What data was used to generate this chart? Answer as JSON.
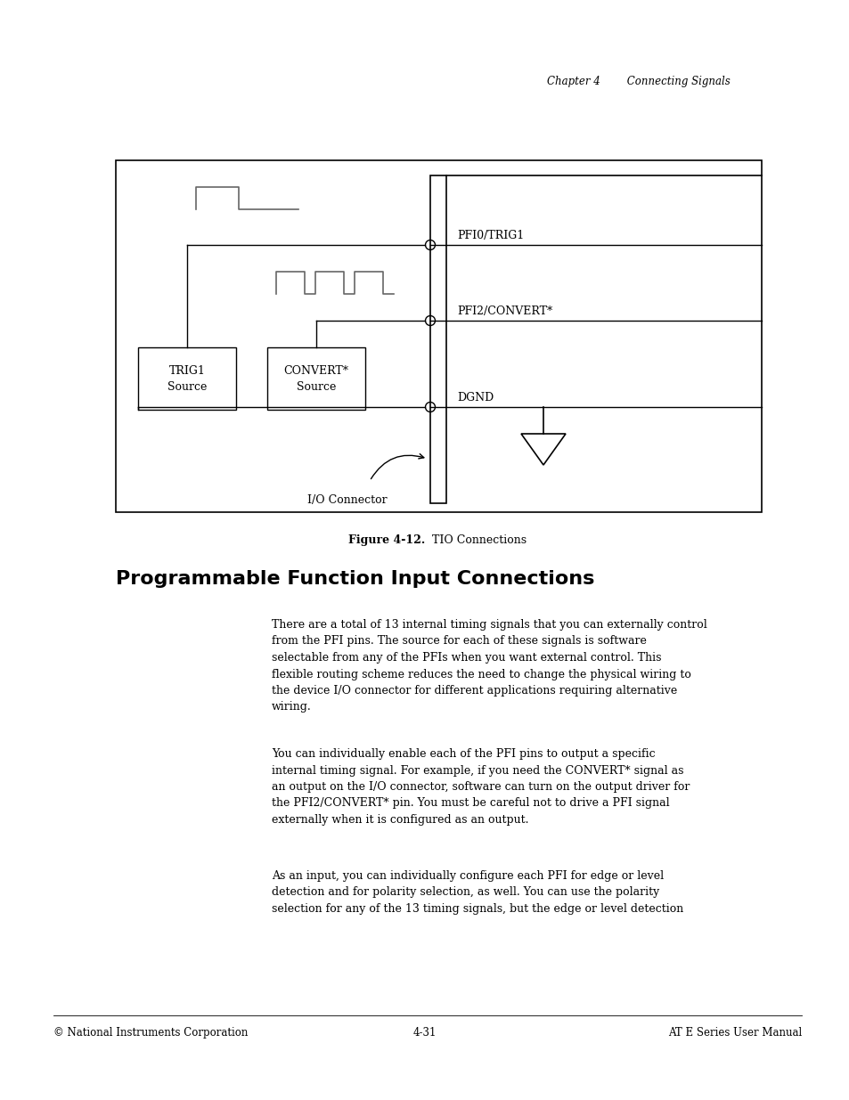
{
  "bg_color": "#ffffff",
  "header_text": "Chapter 4        Connecting Signals",
  "figure_label_bold": "Figure 4-12.",
  "figure_label_normal": "  TIO Connections",
  "section_title": "Programmable Function Input Connections",
  "para1": "There are a total of 13 internal timing signals that you can externally control\nfrom the PFI pins. The source for each of these signals is software\nselectable from any of the PFIs when you want external control. This\nflexible routing scheme reduces the need to change the physical wiring to\nthe device I/O connector for different applications requiring alternative\nwiring.",
  "para2": "You can individually enable each of the PFI pins to output a specific\ninternal timing signal. For example, if you need the CONVERT* signal as\nan output on the I/O connector, software can turn on the output driver for\nthe PFI2/CONVERT* pin. You must be careful not to drive a PFI signal\nexternally when it is configured as an output.",
  "para3": "As an input, you can individually configure each PFI for edge or level\ndetection and for polarity selection, as well. You can use the polarity\nselection for any of the 13 timing signals, but the edge or level detection",
  "footer_left": "© National Instruments Corporation",
  "footer_center": "4-31",
  "footer_right": "AT E Series User Manual"
}
